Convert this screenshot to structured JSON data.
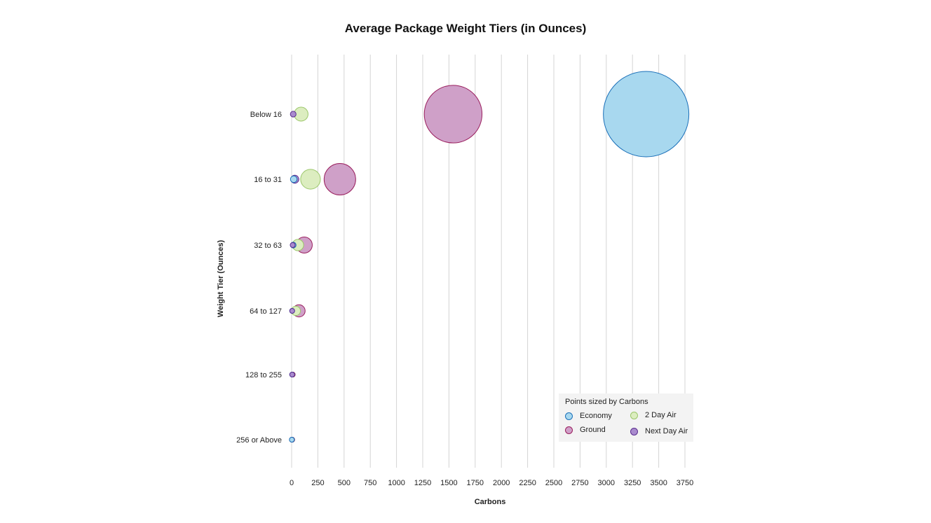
{
  "chart_data": {
    "type": "bubble",
    "title": "Average Package Weight Tiers (in Ounces)",
    "xlabel": "Carbons",
    "ylabel": "Weight Tier (Ounces)",
    "xlim": [
      0,
      3750
    ],
    "xticks": [
      0,
      250,
      500,
      750,
      1000,
      1250,
      1500,
      1750,
      2000,
      2250,
      2500,
      2750,
      3000,
      3250,
      3500,
      3750
    ],
    "categories": [
      "Below 16",
      "16 to 31",
      "32 to 63",
      "64 to 127",
      "128 to 255",
      "256 or Above"
    ],
    "size_label": "Points sized by Carbons",
    "series": [
      {
        "name": "Economy",
        "fill": "#a8d8ef",
        "stroke": "#1a6fb8",
        "values": [
          3380,
          20,
          15,
          5,
          5,
          2
        ]
      },
      {
        "name": "2 Day Air",
        "fill": "#dcedc0",
        "stroke": "#9bc76a",
        "values": [
          90,
          180,
          60,
          40,
          10,
          5
        ]
      },
      {
        "name": "Ground",
        "fill": "#cfa0c8",
        "stroke": "#9a1f5e",
        "values": [
          1540,
          460,
          120,
          70,
          10,
          5
        ]
      },
      {
        "name": "Next Day Air",
        "fill": "#a98bce",
        "stroke": "#5b2e8f",
        "values": [
          15,
          30,
          10,
          5,
          5,
          3
        ]
      }
    ],
    "legend_position": "bottom-right",
    "grid": true
  }
}
